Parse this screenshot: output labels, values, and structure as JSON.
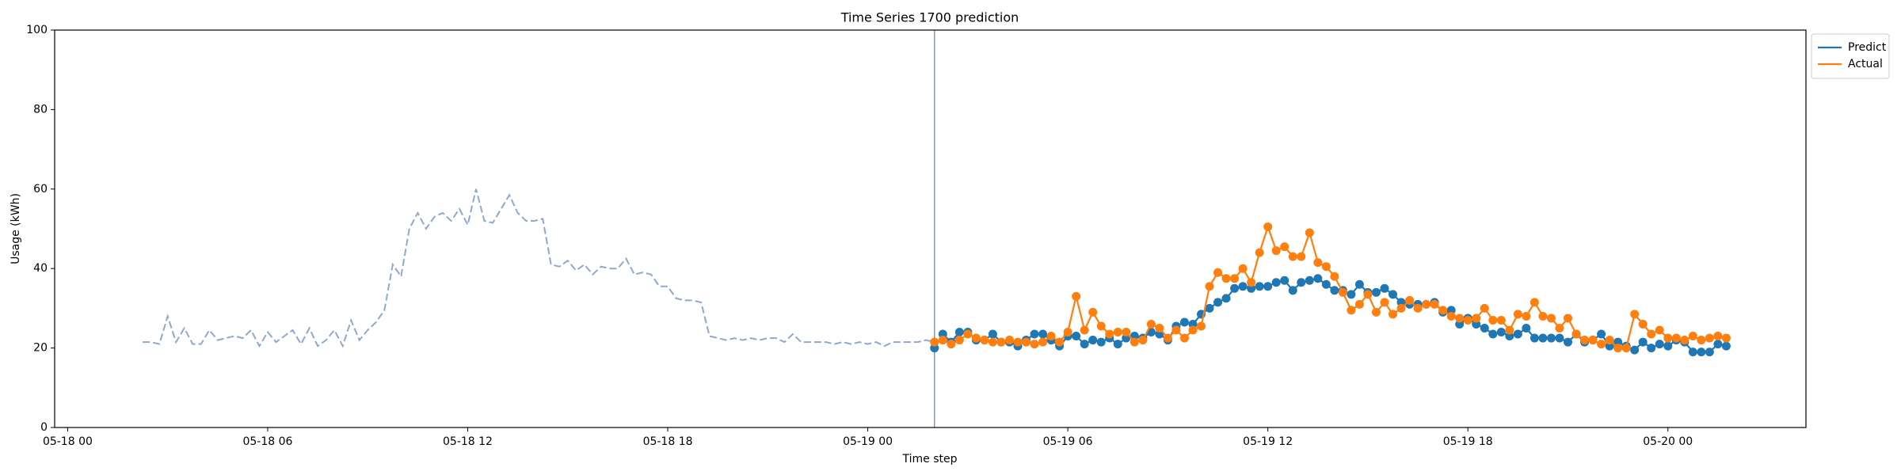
{
  "chart_data": {
    "type": "line",
    "title": "Time Series 1700 prediction",
    "x_label": "Time step",
    "y_label": "Usage (kWh)",
    "xlim": [
      -0.39,
      52.14
    ],
    "ylim": [
      0,
      100
    ],
    "xticks": [
      {
        "value": 0,
        "label": "05-18 00"
      },
      {
        "value": 6,
        "label": "05-18 06"
      },
      {
        "value": 12,
        "label": "05-18 12"
      },
      {
        "value": 18,
        "label": "05-18 18"
      },
      {
        "value": 24,
        "label": "05-19 00"
      },
      {
        "value": 30,
        "label": "05-19 06"
      },
      {
        "value": 36,
        "label": "05-19 12"
      },
      {
        "value": 42,
        "label": "05-19 18"
      },
      {
        "value": 48,
        "label": "05-20 00"
      }
    ],
    "yticks": [
      0,
      20,
      40,
      60,
      80,
      100
    ],
    "legend": "upper right outside",
    "forecast_start": 26,
    "forecast_line_color": "#7f9ccc",
    "history": {
      "color": "#8fa8cf",
      "style": "dashed",
      "x": [
        2.25,
        2.5,
        2.75,
        3,
        3.25,
        3.5,
        3.75,
        4,
        4.25,
        4.5,
        4.75,
        5,
        5.25,
        5.5,
        5.75,
        6,
        6.25,
        6.5,
        6.75,
        7,
        7.25,
        7.5,
        7.75,
        8,
        8.25,
        8.5,
        8.75,
        9,
        9.25,
        9.5,
        9.75,
        10,
        10.25,
        10.5,
        10.75,
        11,
        11.25,
        11.5,
        11.75,
        12,
        12.25,
        12.5,
        12.75,
        13,
        13.25,
        13.5,
        13.75,
        14,
        14.25,
        14.5,
        14.75,
        15,
        15.25,
        15.5,
        15.75,
        16,
        16.25,
        16.5,
        16.75,
        17,
        17.25,
        17.5,
        17.75,
        18,
        18.25,
        18.5,
        18.75,
        19,
        19.25,
        19.5,
        19.75,
        20,
        20.25,
        20.5,
        20.75,
        21,
        21.25,
        21.5,
        21.75,
        22,
        22.25,
        22.5,
        22.75,
        23,
        23.25,
        23.5,
        23.75,
        24,
        24.25,
        24.5,
        24.75,
        25,
        25.25,
        25.5,
        25.75,
        26
      ],
      "values": [
        21.5,
        21.5,
        21,
        28,
        21.5,
        25,
        21,
        21,
        24.5,
        22,
        22.5,
        23,
        22.5,
        24.5,
        20.5,
        24,
        21.5,
        23,
        24.5,
        21,
        25,
        20.5,
        22,
        24.5,
        20.5,
        27,
        22,
        24.5,
        26.5,
        29.5,
        41,
        38,
        50,
        54,
        50,
        53,
        54,
        52,
        55,
        51,
        60,
        52,
        51.5,
        55,
        58.5,
        54,
        52,
        52,
        52.5,
        41,
        40.5,
        42,
        39.5,
        41,
        38.5,
        40.5,
        40,
        40,
        42.5,
        38.5,
        39,
        38.5,
        35.5,
        35.5,
        32.5,
        32,
        32,
        31.5,
        23,
        22.5,
        22,
        22.5,
        22,
        22.5,
        22,
        22.5,
        22.5,
        21.5,
        23.5,
        21.5,
        21.5,
        21.5,
        21.5,
        21,
        21.5,
        21,
        21.5,
        21,
        21.5,
        20.5,
        21.5,
        21.5,
        21.5,
        21.5,
        22,
        21.5
      ]
    },
    "x": [
      26,
      26.25,
      26.5,
      26.75,
      27,
      27.25,
      27.5,
      27.75,
      28,
      28.25,
      28.5,
      28.75,
      29,
      29.25,
      29.5,
      29.75,
      30,
      30.25,
      30.5,
      30.75,
      31,
      31.25,
      31.5,
      31.75,
      32,
      32.25,
      32.5,
      32.75,
      33,
      33.25,
      33.5,
      33.75,
      34,
      34.25,
      34.5,
      34.75,
      35,
      35.25,
      35.5,
      35.75,
      36,
      36.25,
      36.5,
      36.75,
      37,
      37.25,
      37.5,
      37.75,
      38,
      38.25,
      38.5,
      38.75,
      39,
      39.25,
      39.5,
      39.75,
      40,
      40.25,
      40.5,
      40.75,
      41,
      41.25,
      41.5,
      41.75,
      42,
      42.25,
      42.5,
      42.75,
      43,
      43.25,
      43.5,
      43.75,
      44,
      44.25,
      44.5,
      44.75,
      45,
      45.25,
      45.5,
      45.75,
      46,
      46.25,
      46.5,
      46.75,
      47,
      47.25,
      47.5,
      47.75,
      48,
      48.25,
      48.5,
      48.75,
      49,
      49.25,
      49.5,
      49.75
    ],
    "series": [
      {
        "name": "Predict",
        "color": "#1f77b4",
        "values": [
          20,
          23.5,
          21.5,
          24,
          24,
          22,
          22,
          23.5,
          21.5,
          21.5,
          20.5,
          22,
          23.5,
          23.5,
          22,
          20.5,
          23,
          23,
          21,
          22,
          21.5,
          22.5,
          21,
          22.5,
          23,
          22.5,
          24,
          23.5,
          22,
          25.5,
          26.5,
          26,
          28.5,
          30,
          31.5,
          32.5,
          35,
          35.5,
          35,
          35.5,
          35.5,
          36.5,
          37,
          34.5,
          36.5,
          37,
          37.5,
          36,
          34.5,
          34.5,
          33.5,
          36,
          34,
          34,
          35,
          33.5,
          31.5,
          31,
          31,
          31,
          31.5,
          29,
          29.5,
          26,
          27.5,
          26,
          25,
          23.5,
          24,
          23,
          23.5,
          25,
          22.5,
          22.5,
          22.5,
          22.5,
          21.5,
          23.5,
          21.5,
          22,
          23.5,
          20.5,
          21.5,
          20.5,
          19.5,
          21.5,
          20,
          21,
          20.5,
          22,
          21.5,
          19,
          19,
          19,
          21,
          20.5
        ]
      },
      {
        "name": "Actual",
        "color": "#ff7f0e",
        "values": [
          21.5,
          22,
          21,
          22,
          23.5,
          22.5,
          22,
          21.5,
          21.5,
          22,
          21.5,
          21.5,
          21,
          21.5,
          23,
          21.5,
          24,
          33,
          24.5,
          29,
          25.5,
          23.5,
          24,
          24,
          21.5,
          22,
          26,
          25,
          22.5,
          24.5,
          22.5,
          24.5,
          25.5,
          35.5,
          39,
          37.5,
          37.5,
          40,
          36.5,
          44,
          50.5,
          44.5,
          45.5,
          43,
          43,
          49,
          41.5,
          40.5,
          38,
          34,
          29.5,
          31,
          33.5,
          29,
          31.5,
          28.5,
          30,
          32,
          30,
          31,
          31,
          29.5,
          28,
          27.5,
          27,
          27.5,
          30,
          27,
          27,
          24.5,
          28.5,
          28,
          31.5,
          28,
          27.5,
          25,
          27.5,
          23.5,
          22,
          22,
          21,
          22,
          20,
          20,
          28.5,
          26,
          23.5,
          24.5,
          22.5,
          22.5,
          22,
          23,
          22,
          22.5,
          23,
          22.5
        ]
      }
    ]
  }
}
